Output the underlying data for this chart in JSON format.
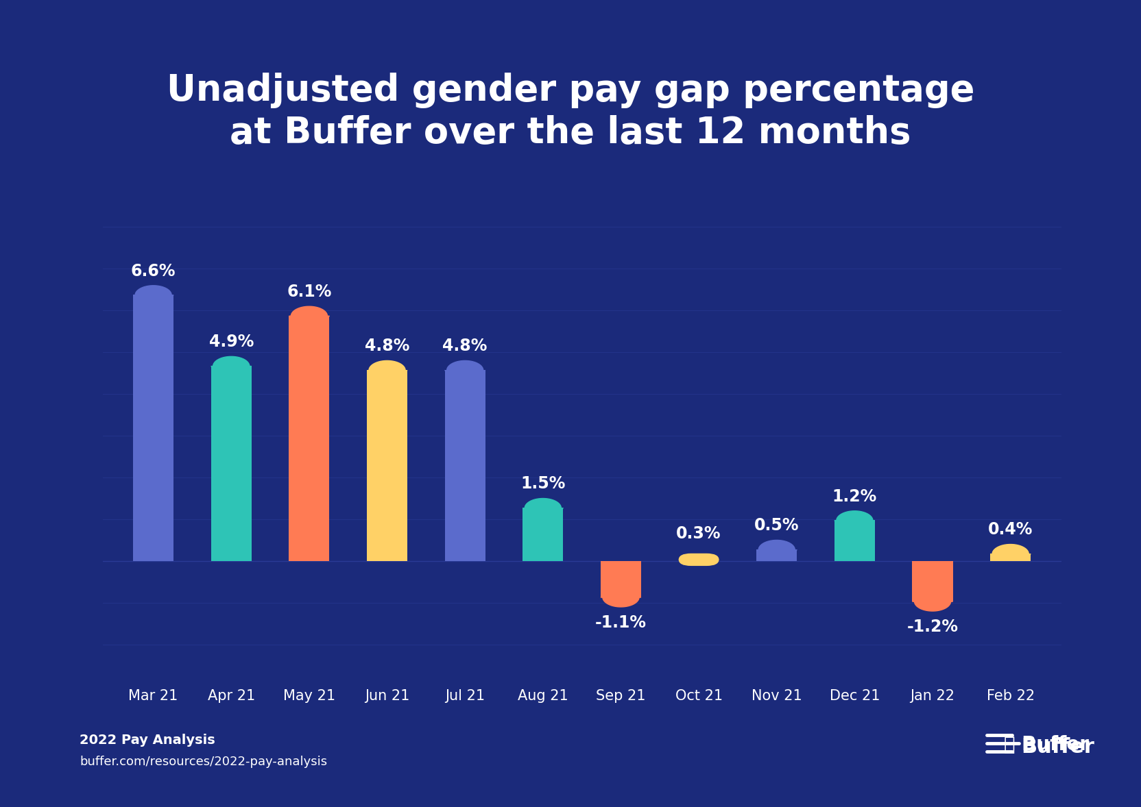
{
  "title": "Unadjusted gender pay gap percentage\nat Buffer over the last 12 months",
  "categories": [
    "Mar 21",
    "Apr 21",
    "May 21",
    "Jun 21",
    "Jul 21",
    "Aug 21",
    "Sep 21",
    "Oct 21",
    "Nov 21",
    "Dec 21",
    "Jan 22",
    "Feb 22"
  ],
  "values": [
    6.6,
    4.9,
    6.1,
    4.8,
    4.8,
    1.5,
    -1.1,
    0.3,
    0.5,
    1.2,
    -1.2,
    0.4
  ],
  "bar_colors": [
    "#5B6BCC",
    "#2EC4B6",
    "#FF7B54",
    "#FFD166",
    "#5B6BCC",
    "#2EC4B6",
    "#FF7B54",
    "#FFD166",
    "#5B6BCC",
    "#2EC4B6",
    "#FF7B54",
    "#FFD166"
  ],
  "background_color": "#1B2A7B",
  "text_color": "#FFFFFF",
  "grid_color": "#2E3F9E",
  "title_fontsize": 38,
  "label_fontsize": 15,
  "value_fontsize": 17,
  "footer_bold": "2022 Pay Analysis",
  "footer_url": "buffer.com/resources/2022-pay-analysis",
  "ylim": [
    -2.8,
    8.8
  ]
}
